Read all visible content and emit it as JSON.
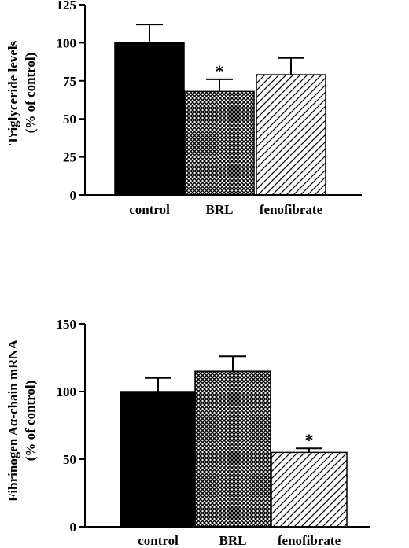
{
  "chart_data": [
    {
      "type": "bar",
      "title": "",
      "ylabel": [
        "Triglyceride levels",
        "(% of control)"
      ],
      "xlabel": "",
      "categories": [
        "control",
        "BRL",
        "fenofibrate"
      ],
      "values": [
        100,
        68,
        79
      ],
      "errors": [
        12,
        8,
        11
      ],
      "significance": [
        "",
        "*",
        ""
      ],
      "fill": [
        "solid-black",
        "crosshatch",
        "diagonal-stripes"
      ],
      "ylim": [
        0,
        125
      ],
      "yticks": [
        0,
        25,
        50,
        75,
        100,
        125
      ],
      "grid": false
    },
    {
      "type": "bar",
      "title": "",
      "ylabel": [
        "Fibrinogen Aα-chain mRNA",
        "(% of control)"
      ],
      "xlabel": "",
      "categories": [
        "control",
        "BRL",
        "fenofibrate"
      ],
      "values": [
        100,
        115,
        55
      ],
      "errors": [
        10,
        11,
        3
      ],
      "significance": [
        "",
        "",
        "*"
      ],
      "fill": [
        "solid-black",
        "crosshatch",
        "diagonal-stripes"
      ],
      "ylim": [
        0,
        150
      ],
      "yticks": [
        0,
        50,
        100,
        150
      ],
      "grid": false
    }
  ],
  "colors": {
    "ink": "#000000",
    "background": "#ffffff"
  }
}
